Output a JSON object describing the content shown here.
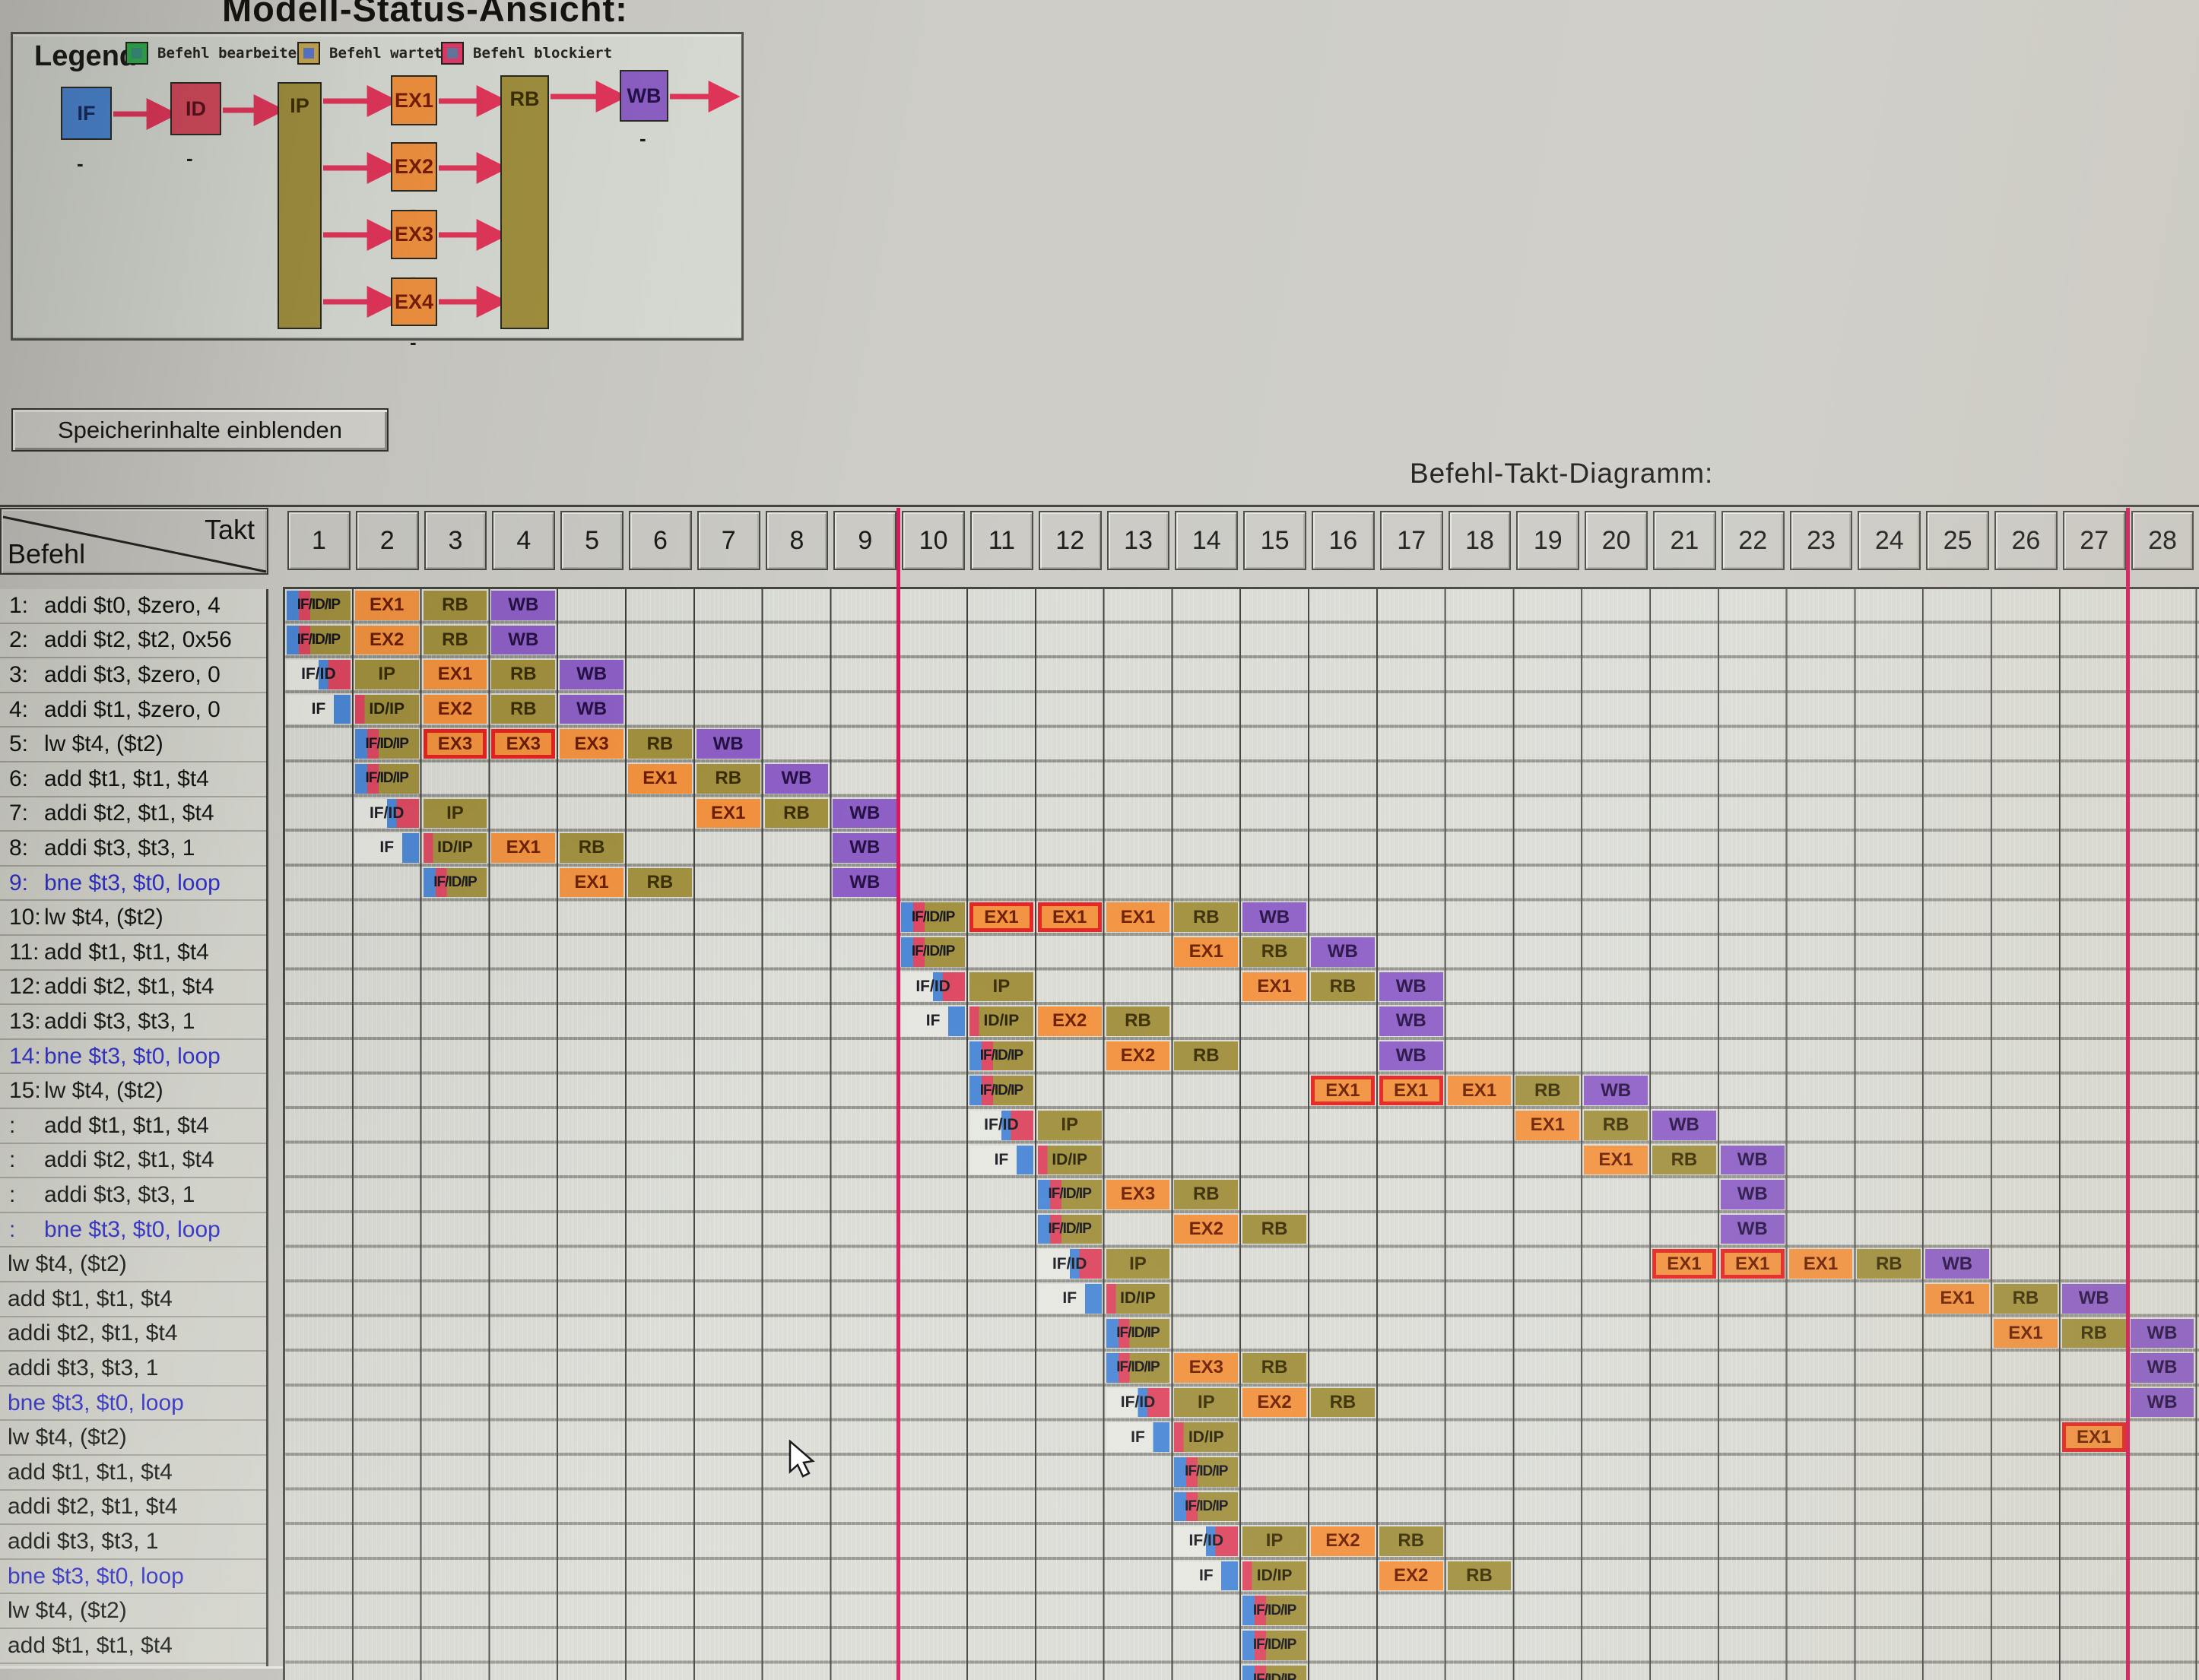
{
  "window": {
    "title": "Modell-Status-Ansicht:"
  },
  "legend_panel": {
    "legend_label": "Legend",
    "items": [
      {
        "name": "befehl-bearbeitet",
        "label": "Befehl bearbeitet",
        "outer": "#2faf4c",
        "inner": "#37917d"
      },
      {
        "name": "befehl-wartet",
        "label": "Befehl wartet",
        "outer": "#c9a94e",
        "inner": "#5a78ce"
      },
      {
        "name": "befehl-blockiert",
        "label": "Befehl blockiert",
        "outer": "#e23a67",
        "inner": "#66779f"
      }
    ],
    "stages": [
      {
        "id": "IF",
        "label": "IF",
        "color": "#4a87d6",
        "sub": "-"
      },
      {
        "id": "ID",
        "label": "ID",
        "color": "#d5495c",
        "sub": "-"
      },
      {
        "id": "IP",
        "label": "IP",
        "color": "#a1903e"
      },
      {
        "id": "EX1",
        "label": "EX1",
        "color": "#f2923f",
        "sub": "-"
      },
      {
        "id": "EX2",
        "label": "EX2",
        "color": "#f2923f",
        "sub": "-"
      },
      {
        "id": "EX3",
        "label": "EX3",
        "color": "#f2923f",
        "sub": "-"
      },
      {
        "id": "EX4",
        "label": "EX4",
        "color": "#f2923f",
        "sub": "-"
      },
      {
        "id": "RB",
        "label": "RB",
        "color": "#a1903e"
      },
      {
        "id": "WB",
        "label": "WB",
        "color": "#8d5fc6",
        "sub": "-"
      }
    ]
  },
  "toolbar": {
    "show_memory_label": "Speicherinhalte einblenden"
  },
  "diagram": {
    "title": "Befehl-Takt-Diagramm:",
    "corner": {
      "top_label": "Takt",
      "bottom_label": "Befehl"
    },
    "cycles": 28,
    "red_marker_after_cycles": [
      9,
      27
    ],
    "rows": [
      {
        "num": "1:",
        "text": "addi $t0, $zero, 4",
        "branch": false,
        "cells": [
          [
            "f3",
            1,
            "IF/ID/IP"
          ],
          [
            "ex",
            2,
            "EX1"
          ],
          [
            "rb",
            3,
            "RB"
          ],
          [
            "wb",
            4,
            "WB"
          ]
        ]
      },
      {
        "num": "2:",
        "text": "addi $t2, $t2, 0x56",
        "branch": false,
        "cells": [
          [
            "f3",
            1,
            "IF/ID/IP"
          ],
          [
            "ex",
            2,
            "EX2"
          ],
          [
            "rb",
            3,
            "RB"
          ],
          [
            "wb",
            4,
            "WB"
          ]
        ]
      },
      {
        "num": "3:",
        "text": "addi $t3, $zero, 0",
        "branch": false,
        "cells": [
          [
            "f2",
            1,
            "IF/ID"
          ],
          [
            "ip",
            2,
            "IP"
          ],
          [
            "ex",
            3,
            "EX1"
          ],
          [
            "rb",
            4,
            "RB"
          ],
          [
            "wb",
            5,
            "WB"
          ]
        ]
      },
      {
        "num": "4:",
        "text": "addi $t1, $zero, 0",
        "branch": false,
        "cells": [
          [
            "f1",
            1,
            "IF"
          ],
          [
            "fip",
            2,
            "ID/IP"
          ],
          [
            "ex",
            3,
            "EX2"
          ],
          [
            "rb",
            4,
            "RB"
          ],
          [
            "wb",
            5,
            "WB"
          ]
        ]
      },
      {
        "num": "5:",
        "text": "lw $t4, ($t2)",
        "branch": false,
        "cells": [
          [
            "f3",
            2,
            "IF/ID/IP"
          ],
          [
            "exb",
            3,
            "EX3"
          ],
          [
            "exb",
            4,
            "EX3"
          ],
          [
            "ex",
            5,
            "EX3"
          ],
          [
            "rb",
            6,
            "RB"
          ],
          [
            "wb",
            7,
            "WB"
          ]
        ]
      },
      {
        "num": "6:",
        "text": "add $t1, $t1, $t4",
        "branch": false,
        "cells": [
          [
            "f3",
            2,
            "IF/ID/IP"
          ],
          [
            "ex",
            6,
            "EX1"
          ],
          [
            "rb",
            7,
            "RB"
          ],
          [
            "wb",
            8,
            "WB"
          ]
        ]
      },
      {
        "num": "7:",
        "text": "addi $t2, $t1, $t4",
        "branch": false,
        "cells": [
          [
            "f2",
            2,
            "IF/ID"
          ],
          [
            "ip",
            3,
            "IP"
          ],
          [
            "ex",
            7,
            "EX1"
          ],
          [
            "rb",
            8,
            "RB"
          ],
          [
            "wb",
            9,
            "WB"
          ]
        ]
      },
      {
        "num": "8:",
        "text": "addi $t3, $t3, 1",
        "branch": false,
        "cells": [
          [
            "f1",
            2,
            "IF"
          ],
          [
            "fip",
            3,
            "ID/IP"
          ],
          [
            "ex",
            4,
            "EX1"
          ],
          [
            "rb",
            5,
            "RB"
          ],
          [
            "wb",
            9,
            "WB"
          ]
        ]
      },
      {
        "num": "9:",
        "text": "bne $t3, $t0, loop",
        "branch": true,
        "cells": [
          [
            "f3",
            3,
            "IF/ID/IP"
          ],
          [
            "ex",
            5,
            "EX1"
          ],
          [
            "rb",
            6,
            "RB"
          ],
          [
            "wb",
            9,
            "WB"
          ]
        ]
      },
      {
        "num": "10:",
        "text": "lw $t4, ($t2)",
        "branch": false,
        "cells": [
          [
            "f3",
            10,
            "IF/ID/IP"
          ],
          [
            "exb",
            11,
            "EX1"
          ],
          [
            "exb",
            12,
            "EX1"
          ],
          [
            "ex",
            13,
            "EX1"
          ],
          [
            "rb",
            14,
            "RB"
          ],
          [
            "wb",
            15,
            "WB"
          ]
        ]
      },
      {
        "num": "11:",
        "text": "add $t1, $t1, $t4",
        "branch": false,
        "cells": [
          [
            "f3",
            10,
            "IF/ID/IP"
          ],
          [
            "ex",
            14,
            "EX1"
          ],
          [
            "rb",
            15,
            "RB"
          ],
          [
            "wb",
            16,
            "WB"
          ]
        ]
      },
      {
        "num": "12:",
        "text": "addi $t2, $t1, $t4",
        "branch": false,
        "cells": [
          [
            "f2",
            10,
            "IF/ID"
          ],
          [
            "ip",
            11,
            "IP"
          ],
          [
            "ex",
            15,
            "EX1"
          ],
          [
            "rb",
            16,
            "RB"
          ],
          [
            "wb",
            17,
            "WB"
          ]
        ]
      },
      {
        "num": "13:",
        "text": "addi $t3, $t3, 1",
        "branch": false,
        "cells": [
          [
            "f1",
            10,
            "IF"
          ],
          [
            "fip",
            11,
            "ID/IP"
          ],
          [
            "ex",
            12,
            "EX2"
          ],
          [
            "rb",
            13,
            "RB"
          ],
          [
            "wb",
            17,
            "WB"
          ]
        ]
      },
      {
        "num": "14:",
        "text": "bne $t3, $t0, loop",
        "branch": true,
        "cells": [
          [
            "f3",
            11,
            "IF/ID/IP"
          ],
          [
            "ex",
            13,
            "EX2"
          ],
          [
            "rb",
            14,
            "RB"
          ],
          [
            "wb",
            17,
            "WB"
          ]
        ]
      },
      {
        "num": "15:",
        "text": "lw $t4, ($t2)",
        "branch": false,
        "cells": [
          [
            "f3",
            11,
            "IF/ID/IP"
          ],
          [
            "exb",
            16,
            "EX1"
          ],
          [
            "exb",
            17,
            "EX1"
          ],
          [
            "ex",
            18,
            "EX1"
          ],
          [
            "rb",
            19,
            "RB"
          ],
          [
            "wb",
            20,
            "WB"
          ]
        ]
      },
      {
        "num": ":",
        "text": "add $t1, $t1, $t4",
        "branch": false,
        "cells": [
          [
            "f2",
            11,
            "IF/ID"
          ],
          [
            "ip",
            12,
            "IP"
          ],
          [
            "ex",
            19,
            "EX1"
          ],
          [
            "rb",
            20,
            "RB"
          ],
          [
            "wb",
            21,
            "WB"
          ]
        ]
      },
      {
        "num": ":",
        "text": "addi $t2, $t1, $t4",
        "branch": false,
        "cells": [
          [
            "f1",
            11,
            "IF"
          ],
          [
            "fip",
            12,
            "ID/IP"
          ],
          [
            "ex",
            20,
            "EX1"
          ],
          [
            "rb",
            21,
            "RB"
          ],
          [
            "wb",
            22,
            "WB"
          ]
        ]
      },
      {
        "num": ":",
        "text": "addi $t3, $t3, 1",
        "branch": false,
        "cells": [
          [
            "f3",
            12,
            "IF/ID/IP"
          ],
          [
            "ex",
            13,
            "EX3"
          ],
          [
            "rb",
            14,
            "RB"
          ],
          [
            "wb",
            22,
            "WB"
          ]
        ]
      },
      {
        "num": ":",
        "text": "bne $t3, $t0, loop",
        "branch": true,
        "cells": [
          [
            "f3",
            12,
            "IF/ID/IP"
          ],
          [
            "ex",
            14,
            "EX2"
          ],
          [
            "rb",
            15,
            "RB"
          ],
          [
            "wb",
            22,
            "WB"
          ]
        ]
      },
      {
        "num": "",
        "text": "lw $t4, ($t2)",
        "branch": false,
        "cells": [
          [
            "f2",
            12,
            "IF/ID"
          ],
          [
            "ip",
            13,
            "IP"
          ],
          [
            "exb",
            21,
            "EX1"
          ],
          [
            "exb",
            22,
            "EX1"
          ],
          [
            "ex",
            23,
            "EX1"
          ],
          [
            "rb",
            24,
            "RB"
          ],
          [
            "wb",
            25,
            "WB"
          ]
        ]
      },
      {
        "num": "",
        "text": "add $t1, $t1, $t4",
        "branch": false,
        "cells": [
          [
            "f1",
            12,
            "IF"
          ],
          [
            "fip",
            13,
            "ID/IP"
          ],
          [
            "ex",
            25,
            "EX1"
          ],
          [
            "rb",
            26,
            "RB"
          ],
          [
            "wb",
            27,
            "WB"
          ]
        ]
      },
      {
        "num": "",
        "text": "addi $t2, $t1, $t4",
        "branch": false,
        "cells": [
          [
            "f3",
            13,
            "IF/ID/IP"
          ],
          [
            "ex",
            26,
            "EX1"
          ],
          [
            "rb",
            27,
            "RB"
          ],
          [
            "wb",
            28,
            "WB"
          ]
        ]
      },
      {
        "num": "",
        "text": "addi $t3, $t3, 1",
        "branch": false,
        "cells": [
          [
            "f3",
            13,
            "IF/ID/IP"
          ],
          [
            "ex",
            14,
            "EX3"
          ],
          [
            "rb",
            15,
            "RB"
          ],
          [
            "wb",
            28,
            "WB"
          ]
        ]
      },
      {
        "num": "",
        "text": "bne $t3, $t0, loop",
        "branch": true,
        "cells": [
          [
            "f2",
            13,
            "IF/ID"
          ],
          [
            "ip",
            14,
            "IP"
          ],
          [
            "ex",
            15,
            "EX2"
          ],
          [
            "rb",
            16,
            "RB"
          ],
          [
            "wb",
            28,
            "WB"
          ]
        ]
      },
      {
        "num": "",
        "text": "lw $t4, ($t2)",
        "branch": false,
        "cells": [
          [
            "f1",
            13,
            "IF"
          ],
          [
            "fip",
            14,
            "ID/IP"
          ],
          [
            "exb",
            27,
            "EX1"
          ]
        ]
      },
      {
        "num": "",
        "text": "add $t1, $t1, $t4",
        "branch": false,
        "cells": [
          [
            "f3",
            14,
            "IF/ID/IP"
          ]
        ]
      },
      {
        "num": "",
        "text": "addi $t2, $t1, $t4",
        "branch": false,
        "cells": [
          [
            "f3",
            14,
            "IF/ID/IP"
          ]
        ]
      },
      {
        "num": "",
        "text": "addi $t3, $t3, 1",
        "branch": false,
        "cells": [
          [
            "f2",
            14,
            "IF/ID"
          ],
          [
            "ip",
            15,
            "IP"
          ],
          [
            "ex",
            16,
            "EX2"
          ],
          [
            "rb",
            17,
            "RB"
          ]
        ]
      },
      {
        "num": "",
        "text": "bne $t3, $t0, loop",
        "branch": true,
        "cells": [
          [
            "f1",
            14,
            "IF"
          ],
          [
            "fip",
            15,
            "ID/IP"
          ],
          [
            "ex",
            17,
            "EX2"
          ],
          [
            "rb",
            18,
            "RB"
          ]
        ]
      },
      {
        "num": "",
        "text": "lw $t4, ($t2)",
        "branch": false,
        "cells": [
          [
            "f3",
            15,
            "IF/ID/IP"
          ]
        ]
      },
      {
        "num": "",
        "text": "add $t1, $t1, $t4",
        "branch": false,
        "cells": [
          [
            "f3",
            15,
            "IF/ID/IP"
          ]
        ]
      },
      {
        "num": "",
        "text": "",
        "branch": false,
        "partial": true,
        "cells": [
          [
            "f3",
            15,
            "IF/ID/IP"
          ]
        ]
      }
    ]
  },
  "colors": {
    "page_bg": "#cdccc6",
    "panel_bg": "#d8dcd4",
    "table_bg": "#dadbd5",
    "header_bg": "#cbcac4",
    "grid_line_v": "#3e3e3a",
    "grid_line_h": "#92928c",
    "blue": "#4a87d6",
    "red": "#dd4760",
    "olive": "#a1903e",
    "orange": "#f2923f",
    "purple": "#8d5fc6",
    "fetch_bg": "#e6e7e1",
    "blocked_border": "#e42320",
    "red_line": "#d6185a",
    "branch_text": "#2a2ace",
    "label_text": "#101010",
    "arrow": "#e3355a"
  }
}
